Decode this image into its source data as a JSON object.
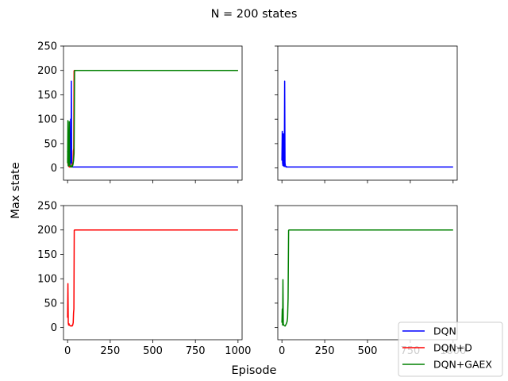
{
  "figure": {
    "suptitle": "N = 200 states",
    "supxlabel": "Episode",
    "supylabel": "Max state"
  },
  "legend": {
    "placement": "lower-right",
    "entries": [
      {
        "label": "DQN",
        "color": "#0000ff"
      },
      {
        "label": "DQN+D",
        "color": "#ff0000"
      },
      {
        "label": "DQN+GAEX",
        "color": "#008000"
      }
    ]
  },
  "chart_data": [
    {
      "type": "line",
      "panel": "top-left",
      "xlim": [
        -24,
        1024
      ],
      "ylim": [
        -25,
        250
      ],
      "xticks": [
        0,
        250,
        500,
        750,
        1000
      ],
      "yticks": [
        0,
        50,
        100,
        150,
        200,
        250
      ],
      "show_xtick_labels": false,
      "show_ytick_labels": true,
      "series": [
        {
          "name": "DQN",
          "color": "#0000ff",
          "x": [
            0,
            2,
            4,
            6,
            8,
            10,
            12,
            14,
            16,
            18,
            20,
            22,
            24,
            26,
            28,
            30,
            35,
            40,
            60,
            100,
            200,
            400,
            600,
            800,
            1000
          ],
          "y": [
            35,
            20,
            8,
            5,
            4,
            3,
            4,
            3,
            50,
            100,
            10,
            178,
            5,
            3,
            2,
            2,
            2,
            2,
            2,
            2,
            2,
            2,
            2,
            2,
            2
          ]
        },
        {
          "name": "DQN+D",
          "color": "#ff0000",
          "x": [
            0,
            2,
            4,
            6,
            8,
            10,
            12,
            15,
            18,
            21,
            24,
            27,
            30,
            32,
            34,
            36,
            38,
            40,
            43,
            46,
            50,
            100,
            200,
            400,
            600,
            800,
            1000
          ],
          "y": [
            20,
            10,
            5,
            3,
            4,
            3,
            2,
            3,
            2,
            3,
            5,
            8,
            10,
            12,
            35,
            40,
            199,
            200,
            200,
            200,
            200,
            200,
            200,
            200,
            200,
            200,
            200
          ]
        },
        {
          "name": "DQN+GAEX",
          "color": "#008000",
          "x": [
            0,
            2,
            4,
            6,
            8,
            10,
            12,
            14,
            16,
            18,
            20,
            22,
            24,
            26,
            28,
            30,
            32,
            35,
            38,
            41,
            44,
            47,
            50,
            100,
            200,
            400,
            600,
            800,
            1000
          ],
          "y": [
            10,
            97,
            5,
            4,
            30,
            95,
            8,
            5,
            3,
            4,
            3,
            2,
            4,
            5,
            3,
            5,
            8,
            15,
            30,
            199,
            200,
            200,
            200,
            200,
            200,
            200,
            200,
            200,
            200
          ]
        }
      ]
    },
    {
      "type": "line",
      "panel": "top-right",
      "xlim": [
        -24,
        1024
      ],
      "ylim": [
        -25,
        250
      ],
      "xticks": [
        0,
        250,
        500,
        750,
        1000
      ],
      "yticks": [
        0,
        50,
        100,
        150,
        200,
        250
      ],
      "show_xtick_labels": false,
      "show_ytick_labels": false,
      "series": [
        {
          "name": "DQN",
          "color": "#0000ff",
          "x": [
            0,
            2,
            4,
            6,
            8,
            10,
            12,
            14,
            16,
            18,
            20,
            22,
            24,
            26,
            28,
            30,
            40,
            60,
            100,
            200,
            400,
            600,
            800,
            1000
          ],
          "y": [
            15,
            75,
            10,
            5,
            70,
            20,
            4,
            3,
            178,
            10,
            5,
            3,
            2,
            3,
            2,
            2,
            2,
            2,
            2,
            2,
            2,
            2,
            2,
            2
          ]
        }
      ]
    },
    {
      "type": "line",
      "panel": "bottom-left",
      "xlim": [
        -24,
        1024
      ],
      "ylim": [
        -25,
        250
      ],
      "xticks": [
        0,
        250,
        500,
        750,
        1000
      ],
      "yticks": [
        0,
        50,
        100,
        150,
        200,
        250
      ],
      "show_xtick_labels": true,
      "show_ytick_labels": true,
      "series": [
        {
          "name": "DQN+D",
          "color": "#ff0000",
          "x": [
            0,
            2,
            4,
            6,
            8,
            10,
            14,
            18,
            22,
            26,
            30,
            33,
            35,
            37,
            39,
            41,
            44,
            50,
            100,
            200,
            400,
            600,
            800,
            1000
          ],
          "y": [
            20,
            90,
            10,
            5,
            8,
            5,
            4,
            3,
            4,
            3,
            5,
            10,
            30,
            38,
            199,
            200,
            200,
            200,
            200,
            200,
            200,
            200,
            200,
            200
          ]
        }
      ]
    },
    {
      "type": "line",
      "panel": "bottom-right",
      "xlim": [
        -24,
        1024
      ],
      "ylim": [
        -25,
        250
      ],
      "xticks": [
        0,
        250,
        500,
        750,
        1000
      ],
      "yticks": [
        0,
        50,
        100,
        150,
        200,
        250
      ],
      "show_xtick_labels": true,
      "show_ytick_labels": false,
      "series": [
        {
          "name": "DQN+GAEX",
          "color": "#008000",
          "x": [
            0,
            2,
            4,
            6,
            8,
            10,
            14,
            18,
            22,
            26,
            30,
            33,
            36,
            39,
            42,
            45,
            50,
            100,
            200,
            400,
            600,
            800,
            1000
          ],
          "y": [
            10,
            38,
            5,
            98,
            8,
            5,
            4,
            3,
            5,
            8,
            12,
            20,
            60,
            199,
            200,
            200,
            200,
            200,
            200,
            200,
            200,
            200,
            200
          ]
        }
      ]
    }
  ]
}
